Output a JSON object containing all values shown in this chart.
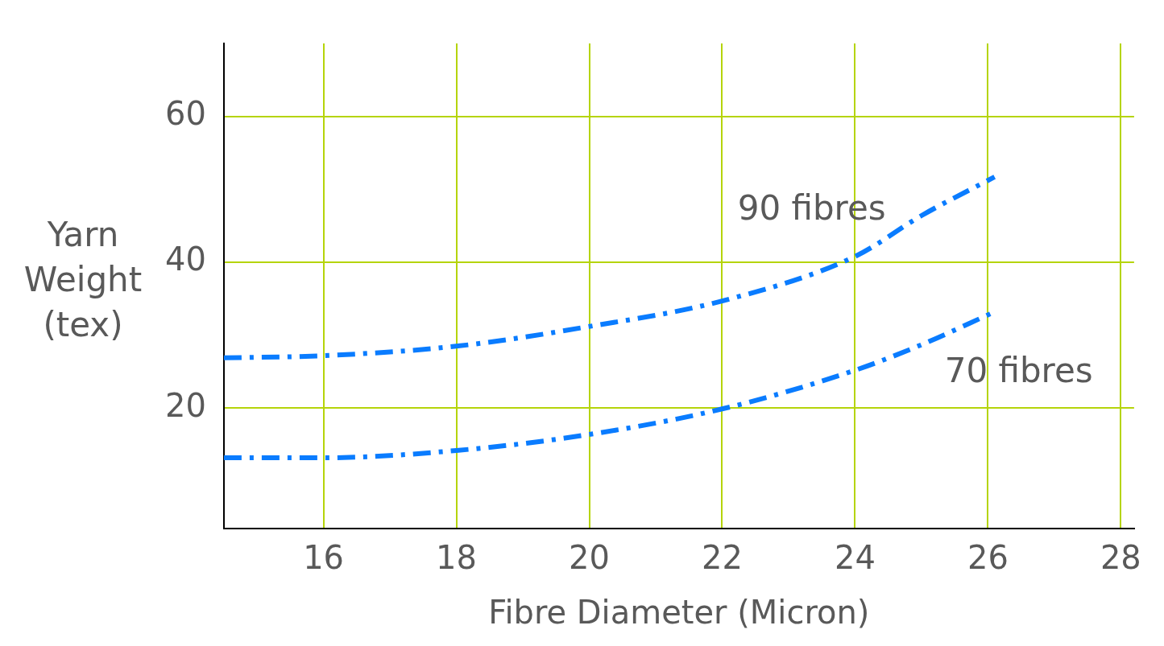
{
  "chart_data": {
    "type": "line",
    "xlabel": "Fibre Diameter (Micron)",
    "ylabel": "Yarn Weight (tex)",
    "x": [
      14.5,
      16,
      18,
      20,
      22,
      24,
      25,
      26.1
    ],
    "series": [
      {
        "name": "90 fibres",
        "color": "#0a7cff",
        "values": [
          26.9,
          27.2,
          28.5,
          31.2,
          34.7,
          40.8,
          46.4,
          51.7
        ]
      },
      {
        "name": "70 fibres",
        "color": "#0a7cff",
        "values": [
          13.2,
          13.2,
          14.2,
          16.4,
          19.9,
          25.2,
          28.7,
          33.2
        ]
      }
    ],
    "xlim": [
      14.5,
      28.2
    ],
    "xticks": [
      16,
      18,
      20,
      22,
      24,
      26,
      28
    ],
    "ylim": [
      3.5,
      70
    ],
    "yticks": [
      20,
      40,
      60
    ],
    "grid": true,
    "legend": false,
    "marker": "none",
    "line_style": "dashed"
  }
}
